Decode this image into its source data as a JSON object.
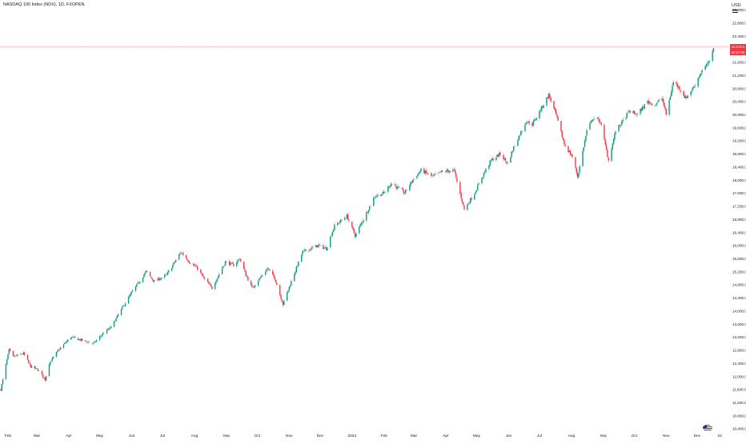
{
  "header": {
    "symbol_title": "NASDAQ 100 Index (NDX), 1D, FXOPEN",
    "currency": "USD"
  },
  "price_badge": {
    "price": "22,079.5",
    "countdown": "10:17:02"
  },
  "colors": {
    "up": "#089981",
    "down": "#f23645",
    "axis_text": "#131722",
    "last_price_line": "#f23645"
  },
  "icons": [
    "menu-icon",
    "us-flag-icon"
  ],
  "chart_data": {
    "type": "candlestick",
    "ylim": [
      10300,
      23500
    ],
    "y_ticks": [
      10400,
      10800,
      11200,
      11600,
      12000,
      12400,
      12800,
      13200,
      13600,
      14000,
      14400,
      14800,
      15200,
      15600,
      16000,
      16400,
      16800,
      17200,
      17600,
      18000,
      18400,
      18800,
      19200,
      19600,
      20000,
      20400,
      20800,
      21200,
      21600,
      22000,
      22400,
      22800,
      23200
    ],
    "y_tick_labels": [
      "10,400.0",
      "10,800.0",
      "11,200.0",
      "11,600.0",
      "12,000.0",
      "12,400.0",
      "12,800.0",
      "13,200.0",
      "13,600.0",
      "14,000.0",
      "14,400.0",
      "14,800.0",
      "15,200.0",
      "15,600.0",
      "16,000.0",
      "16,400.0",
      "16,800.0",
      "17,200.0",
      "17,600.0",
      "18,000.0",
      "18,400.0",
      "18,800.0",
      "19,200.0",
      "19,600.0",
      "20,000.0",
      "20,400.0",
      "20,800.0",
      "21,200.0",
      "21,600.0",
      "22,000.0",
      "22,400.0",
      "22,800.0",
      "23,200.0"
    ],
    "x_range": [
      "2023-01-25",
      "2024-12-19"
    ],
    "x_ticks": [
      {
        "date": "2023-02-01",
        "label": "Feb"
      },
      {
        "date": "2023-03-01",
        "label": "Mar"
      },
      {
        "date": "2023-04-01",
        "label": "Apr"
      },
      {
        "date": "2023-05-01",
        "label": "May"
      },
      {
        "date": "2023-06-01",
        "label": "Jun"
      },
      {
        "date": "2023-07-01",
        "label": "Jul"
      },
      {
        "date": "2023-08-01",
        "label": "Aug"
      },
      {
        "date": "2023-09-01",
        "label": "Sep"
      },
      {
        "date": "2023-10-01",
        "label": "Oct"
      },
      {
        "date": "2023-11-01",
        "label": "Nov"
      },
      {
        "date": "2023-12-01",
        "label": "Dec"
      },
      {
        "date": "2024-01-01",
        "label": "2024"
      },
      {
        "date": "2024-02-01",
        "label": "Feb"
      },
      {
        "date": "2024-03-01",
        "label": "Mar"
      },
      {
        "date": "2024-04-01",
        "label": "Apr"
      },
      {
        "date": "2024-05-01",
        "label": "May"
      },
      {
        "date": "2024-06-01",
        "label": "Jun"
      },
      {
        "date": "2024-07-01",
        "label": "Jul"
      },
      {
        "date": "2024-08-01",
        "label": "Aug"
      },
      {
        "date": "2024-09-01",
        "label": "Sep"
      },
      {
        "date": "2024-10-01",
        "label": "Oct"
      },
      {
        "date": "2024-11-01",
        "label": "Nov"
      },
      {
        "date": "2024-12-01",
        "label": "Dec"
      },
      {
        "date": "2024-12-23",
        "label": "23"
      }
    ],
    "last_price": 22079.5,
    "key_points": [
      {
        "date": "2023-01-25",
        "close": 11600
      },
      {
        "date": "2023-02-02",
        "close": 12800
      },
      {
        "date": "2023-02-06",
        "close": 12600
      },
      {
        "date": "2023-02-16",
        "close": 12700
      },
      {
        "date": "2023-02-23",
        "close": 12300
      },
      {
        "date": "2023-03-02",
        "close": 12200
      },
      {
        "date": "2023-03-09",
        "close": 11900
      },
      {
        "date": "2023-03-13",
        "close": 12400
      },
      {
        "date": "2023-03-22",
        "close": 12800
      },
      {
        "date": "2023-04-03",
        "close": 13200
      },
      {
        "date": "2023-04-14",
        "close": 13100
      },
      {
        "date": "2023-04-25",
        "close": 13000
      },
      {
        "date": "2023-05-04",
        "close": 13300
      },
      {
        "date": "2023-05-12",
        "close": 13500
      },
      {
        "date": "2023-05-25",
        "close": 14200
      },
      {
        "date": "2023-06-02",
        "close": 14600
      },
      {
        "date": "2023-06-15",
        "close": 15200
      },
      {
        "date": "2023-06-23",
        "close": 14900
      },
      {
        "date": "2023-07-05",
        "close": 15100
      },
      {
        "date": "2023-07-19",
        "close": 15800
      },
      {
        "date": "2023-07-27",
        "close": 15500
      },
      {
        "date": "2023-08-04",
        "close": 15300
      },
      {
        "date": "2023-08-10",
        "close": 15000
      },
      {
        "date": "2023-08-18",
        "close": 14700
      },
      {
        "date": "2023-08-23",
        "close": 15000
      },
      {
        "date": "2023-08-31",
        "close": 15500
      },
      {
        "date": "2023-09-08",
        "close": 15400
      },
      {
        "date": "2023-09-14",
        "close": 15600
      },
      {
        "date": "2023-09-20",
        "close": 15100
      },
      {
        "date": "2023-09-26",
        "close": 14700
      },
      {
        "date": "2023-10-11",
        "close": 15300
      },
      {
        "date": "2023-10-18",
        "close": 15000
      },
      {
        "date": "2023-10-26",
        "close": 14200
      },
      {
        "date": "2023-11-03",
        "close": 14900
      },
      {
        "date": "2023-11-14",
        "close": 15800
      },
      {
        "date": "2023-11-29",
        "close": 16000
      },
      {
        "date": "2023-12-07",
        "close": 15900
      },
      {
        "date": "2023-12-15",
        "close": 16600
      },
      {
        "date": "2023-12-27",
        "close": 16900
      },
      {
        "date": "2024-01-04",
        "close": 16300
      },
      {
        "date": "2024-01-12",
        "close": 16800
      },
      {
        "date": "2024-01-23",
        "close": 17500
      },
      {
        "date": "2024-02-01",
        "close": 17600
      },
      {
        "date": "2024-02-08",
        "close": 17900
      },
      {
        "date": "2024-02-21",
        "close": 17600
      },
      {
        "date": "2024-02-29",
        "close": 18000
      },
      {
        "date": "2024-03-08",
        "close": 18300
      },
      {
        "date": "2024-03-19",
        "close": 18100
      },
      {
        "date": "2024-03-28",
        "close": 18250
      },
      {
        "date": "2024-04-09",
        "close": 18300
      },
      {
        "date": "2024-04-19",
        "close": 17100
      },
      {
        "date": "2024-04-29",
        "close": 17600
      },
      {
        "date": "2024-05-08",
        "close": 18200
      },
      {
        "date": "2024-05-15",
        "close": 18600
      },
      {
        "date": "2024-05-24",
        "close": 18800
      },
      {
        "date": "2024-05-31",
        "close": 18500
      },
      {
        "date": "2024-06-06",
        "close": 19000
      },
      {
        "date": "2024-06-18",
        "close": 19800
      },
      {
        "date": "2024-06-24",
        "close": 19700
      },
      {
        "date": "2024-07-03",
        "close": 20200
      },
      {
        "date": "2024-07-10",
        "close": 20600
      },
      {
        "date": "2024-07-17",
        "close": 20000
      },
      {
        "date": "2024-07-25",
        "close": 19100
      },
      {
        "date": "2024-08-02",
        "close": 18700
      },
      {
        "date": "2024-08-07",
        "close": 18100
      },
      {
        "date": "2024-08-16",
        "close": 19500
      },
      {
        "date": "2024-08-22",
        "close": 19900
      },
      {
        "date": "2024-08-29",
        "close": 19800
      },
      {
        "date": "2024-09-06",
        "close": 18600
      },
      {
        "date": "2024-09-13",
        "close": 19500
      },
      {
        "date": "2024-09-20",
        "close": 19800
      },
      {
        "date": "2024-09-26",
        "close": 20100
      },
      {
        "date": "2024-10-04",
        "close": 20000
      },
      {
        "date": "2024-10-14",
        "close": 20400
      },
      {
        "date": "2024-10-21",
        "close": 20300
      },
      {
        "date": "2024-10-28",
        "close": 20500
      },
      {
        "date": "2024-11-01",
        "close": 20000
      },
      {
        "date": "2024-11-08",
        "close": 21000
      },
      {
        "date": "2024-11-14",
        "close": 20800
      },
      {
        "date": "2024-11-20",
        "close": 20500
      },
      {
        "date": "2024-11-27",
        "close": 20800
      },
      {
        "date": "2024-12-05",
        "close": 21300
      },
      {
        "date": "2024-12-13",
        "close": 21600
      },
      {
        "date": "2024-12-17",
        "close": 22079.5
      }
    ]
  }
}
